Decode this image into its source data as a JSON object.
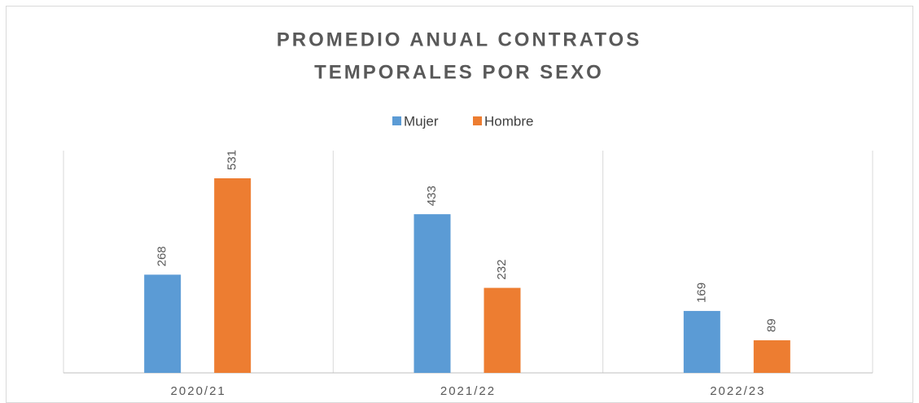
{
  "chart_data": {
    "type": "bar",
    "title": [
      "PROMEDIO ANUAL CONTRATOS",
      "TEMPORALES POR SEXO"
    ],
    "categories": [
      "2020/21",
      "2021/22",
      "2022/23"
    ],
    "series": [
      {
        "name": "Mujer",
        "color": "#5b9bd5",
        "values": [
          268,
          433,
          169
        ]
      },
      {
        "name": "Hombre",
        "color": "#ed7d31",
        "values": [
          531,
          232,
          89
        ]
      }
    ]
  }
}
